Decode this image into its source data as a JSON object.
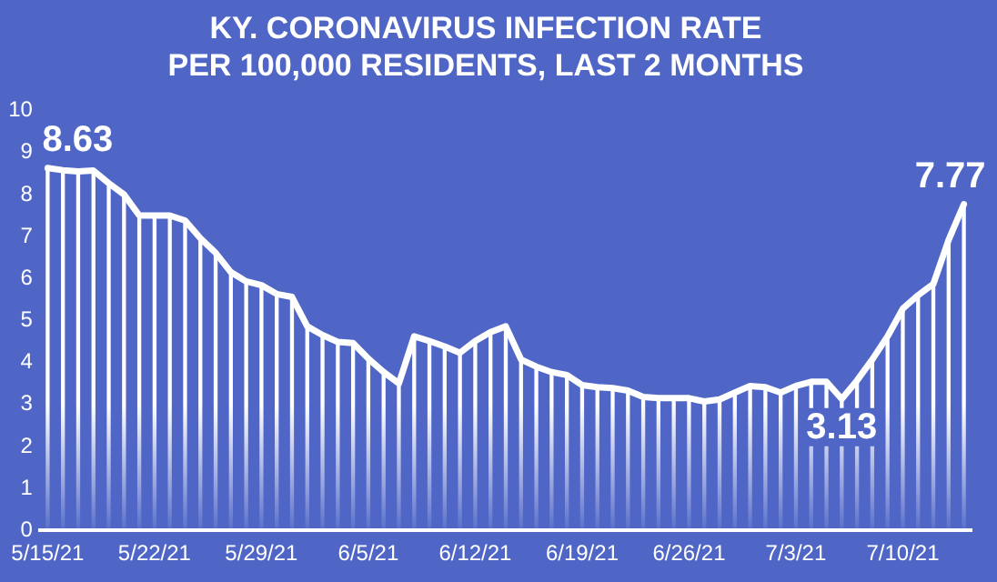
{
  "chart_data": {
    "type": "line",
    "title": [
      "KY. CORONAVIRUS INFECTION RATE",
      "PER 100,000 RESIDENTS, LAST 2 MONTHS"
    ],
    "categories": [
      "5/15/21",
      null,
      null,
      null,
      null,
      null,
      null,
      "5/22/21",
      null,
      null,
      null,
      null,
      null,
      null,
      "5/29/21",
      null,
      null,
      null,
      null,
      null,
      null,
      "6/5/21",
      null,
      null,
      null,
      null,
      null,
      null,
      "6/12/21",
      null,
      null,
      null,
      null,
      null,
      null,
      "6/19/21",
      null,
      null,
      null,
      null,
      null,
      null,
      "6/26/21",
      null,
      null,
      null,
      null,
      null,
      null,
      "7/3/21",
      null,
      null,
      null,
      null,
      null,
      null,
      "7/10/21",
      null,
      null,
      null,
      null
    ],
    "series": [
      {
        "color": "#ffffff",
        "values": [
          8.63,
          8.58,
          8.55,
          8.57,
          8.27,
          8.0,
          7.5,
          7.5,
          7.5,
          7.38,
          6.96,
          6.61,
          6.15,
          5.93,
          5.84,
          5.63,
          5.56,
          4.86,
          4.65,
          4.49,
          4.46,
          4.09,
          3.77,
          3.5,
          4.62,
          4.51,
          4.38,
          4.23,
          4.51,
          4.72,
          4.86,
          4.07,
          3.9,
          3.77,
          3.7,
          3.46,
          3.41,
          3.39,
          3.33,
          3.18,
          3.15,
          3.15,
          3.15,
          3.07,
          3.12,
          3.28,
          3.44,
          3.41,
          3.28,
          3.44,
          3.54,
          3.54,
          3.13,
          3.57,
          4.07,
          4.62,
          5.28,
          5.6,
          5.87,
          6.92,
          7.77
        ],
        "value_labels": [
          "8.63",
          null,
          null,
          null,
          null,
          null,
          null,
          null,
          null,
          null,
          null,
          null,
          null,
          null,
          null,
          null,
          null,
          null,
          null,
          null,
          null,
          null,
          null,
          null,
          null,
          null,
          null,
          null,
          null,
          null,
          null,
          null,
          null,
          null,
          null,
          null,
          null,
          null,
          null,
          null,
          null,
          null,
          null,
          null,
          null,
          null,
          null,
          null,
          null,
          null,
          null,
          null,
          "3.13",
          null,
          null,
          null,
          null,
          null,
          null,
          null,
          "7.77"
        ]
      },
      {
        "type": "bar",
        "color": "#ffffff",
        "values": [
          8.63,
          8.58,
          8.55,
          8.57,
          8.27,
          8.0,
          7.5,
          7.5,
          7.5,
          7.38,
          6.96,
          6.61,
          6.15,
          5.93,
          5.84,
          5.63,
          5.56,
          4.86,
          4.65,
          4.49,
          4.46,
          4.09,
          3.77,
          3.5,
          4.62,
          4.51,
          4.38,
          4.23,
          4.51,
          4.72,
          4.86,
          4.07,
          3.9,
          3.77,
          3.7,
          3.46,
          3.41,
          3.39,
          3.33,
          3.18,
          3.15,
          3.15,
          3.15,
          3.07,
          3.12,
          3.28,
          3.44,
          3.41,
          3.28,
          3.44,
          3.54,
          3.54,
          3.13,
          3.57,
          4.07,
          4.62,
          5.28,
          5.6,
          5.87,
          6.92,
          7.77
        ]
      }
    ],
    "ylim": [
      0,
      10
    ],
    "yticks": [
      0,
      1,
      2,
      3,
      4,
      5,
      6,
      7,
      8,
      9,
      10
    ],
    "grid": false,
    "legend": false,
    "marker": "none",
    "line_style": "solid"
  }
}
